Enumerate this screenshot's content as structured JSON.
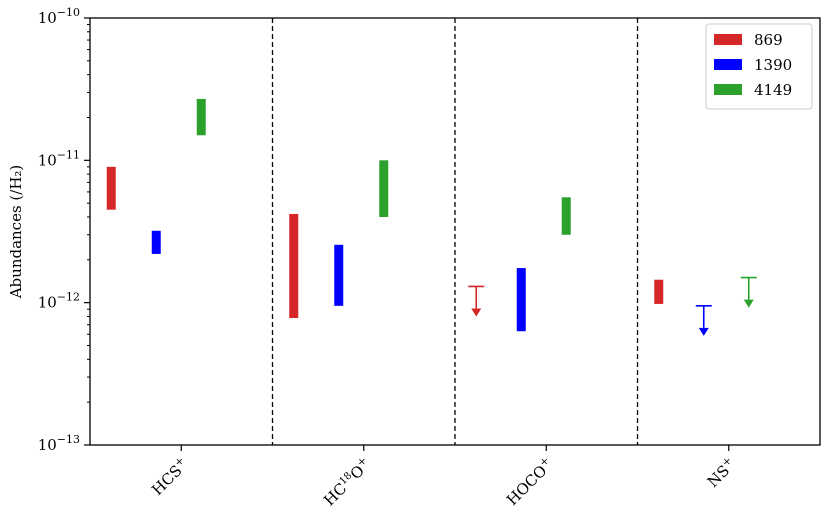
{
  "chart_data": {
    "type": "range-bar",
    "ylabel": "Abundances (/H₂)",
    "yscale": "log",
    "ylim": [
      1e-13,
      1e-10
    ],
    "y_ticks": [
      {
        "value": 1e-13,
        "base": "10",
        "exp": "−13"
      },
      {
        "value": 1e-12,
        "base": "10",
        "exp": "−12"
      },
      {
        "value": 1e-11,
        "base": "10",
        "exp": "−11"
      },
      {
        "value": 1e-10,
        "base": "10",
        "exp": "−10"
      }
    ],
    "categories": [
      {
        "base": "HCS",
        "sup": "+"
      },
      {
        "pre": "HC",
        "sup1": "18",
        "mid": "O",
        "sup": "+"
      },
      {
        "base": "HOCO",
        "sup": "+"
      },
      {
        "base": "NS",
        "sup": "+"
      }
    ],
    "category_separators": "dashed",
    "legend_position": "top-right",
    "series": [
      {
        "name": "869",
        "color": "#d62728",
        "values": [
          {
            "low": 4.5e-12,
            "high": 9e-12
          },
          {
            "low": 7.8e-13,
            "high": 4.2e-12
          },
          {
            "upper_limit": 1.3e-12
          },
          {
            "low": 9.8e-13,
            "high": 1.45e-12
          }
        ]
      },
      {
        "name": "1390",
        "color": "#0000ff",
        "values": [
          {
            "low": 2.2e-12,
            "high": 3.2e-12
          },
          {
            "low": 9.5e-13,
            "high": 2.55e-12
          },
          {
            "low": 6.3e-13,
            "high": 1.75e-12
          },
          {
            "upper_limit": 9.5e-13
          }
        ]
      },
      {
        "name": "4149",
        "color": "#2ca02c",
        "values": [
          {
            "low": 1.5e-11,
            "high": 2.7e-11
          },
          {
            "low": 4e-12,
            "high": 1e-11
          },
          {
            "low": 3e-12,
            "high": 5.5e-12
          },
          {
            "upper_limit": 1.5e-12
          }
        ]
      }
    ]
  }
}
